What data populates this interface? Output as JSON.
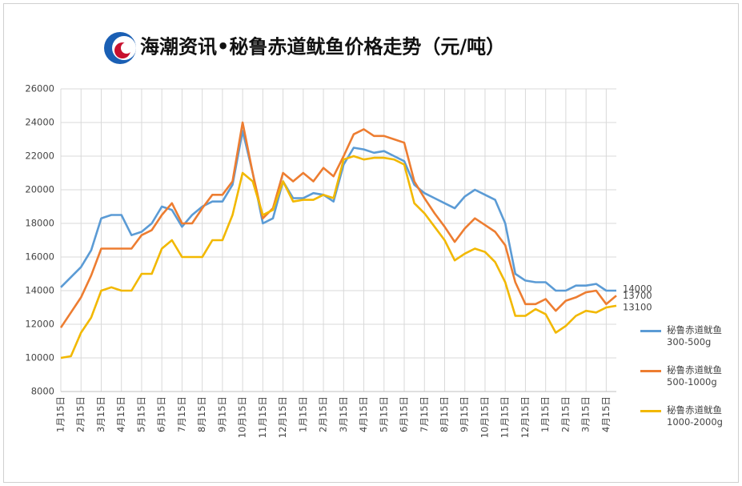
{
  "chart_data": {
    "type": "line",
    "title": "海潮资讯•秘鲁赤道鱿鱼价格走势（元/吨）",
    "categories": [
      "1月15日",
      null,
      "2月15日",
      null,
      "3月15日",
      null,
      "4月15日",
      null,
      "5月15日",
      null,
      "6月15日",
      null,
      "7月15日",
      null,
      "8月15日",
      null,
      "9月15日",
      null,
      "10月15日",
      null,
      "11月15日",
      null,
      "12月15日",
      null,
      "1月15日",
      null,
      "2月15日",
      null,
      "3月15日",
      null,
      "4月15日",
      null,
      "5月15日",
      null,
      "6月15日",
      null,
      "7月15日",
      null,
      "8月15日",
      null,
      "9月15日",
      null,
      "10月15日",
      null,
      "11月15日",
      null,
      "12月15日",
      null,
      "1月15日",
      null,
      "2月15日",
      null,
      "3月15日",
      null,
      "4月15日",
      null
    ],
    "series": [
      {
        "name": "秘鲁赤道鱿鱼\n300-500g",
        "color": "#5b9bd5",
        "values": [
          14200,
          14800,
          15400,
          16400,
          18300,
          18500,
          18500,
          17300,
          17500,
          18000,
          19000,
          18800,
          17800,
          18500,
          19000,
          19300,
          19300,
          20300,
          23500,
          21000,
          18000,
          18300,
          20500,
          19500,
          19500,
          19800,
          19700,
          19300,
          21500,
          22500,
          22400,
          22200,
          22300,
          22000,
          21700,
          20300,
          19800,
          19500,
          19200,
          18900,
          19600,
          20000,
          19700,
          19400,
          18000,
          15000,
          14600,
          14500,
          14500,
          14000,
          14000,
          14300,
          14300,
          14400,
          14000,
          14000
        ]
      },
      {
        "name": "秘鲁赤道鱿鱼\n500-1000g",
        "color": "#ed7d31",
        "values": [
          11800,
          12700,
          13600,
          14900,
          16500,
          16500,
          16500,
          16500,
          17300,
          17600,
          18500,
          19200,
          18000,
          18000,
          18900,
          19700,
          19700,
          20500,
          24000,
          21000,
          18300,
          18900,
          21000,
          20500,
          21000,
          20500,
          21300,
          20800,
          22000,
          23300,
          23600,
          23200,
          23200,
          23000,
          22800,
          20500,
          19500,
          18600,
          17800,
          16900,
          17700,
          18300,
          17900,
          17500,
          16700,
          14500,
          13200,
          13200,
          13500,
          12800,
          13400,
          13600,
          13900,
          14000,
          13200,
          13700
        ]
      },
      {
        "name": "秘鲁赤道鱿鱼\n1000-2000g",
        "color": "#f2b800",
        "values": [
          10000,
          10100,
          11500,
          12400,
          14000,
          14200,
          14000,
          14000,
          15000,
          15000,
          16500,
          17000,
          16000,
          16000,
          16000,
          17000,
          17000,
          18500,
          21000,
          20500,
          18500,
          18800,
          20500,
          19300,
          19400,
          19400,
          19700,
          19500,
          21800,
          22000,
          21800,
          21900,
          21900,
          21800,
          21500,
          19200,
          18600,
          17800,
          17000,
          15800,
          16200,
          16500,
          16300,
          15700,
          14500,
          12500,
          12500,
          12900,
          12600,
          11500,
          11900,
          12500,
          12800,
          12700,
          13000,
          13100
        ]
      }
    ],
    "ylim": [
      8000,
      26000
    ],
    "yticks": [
      8000,
      10000,
      12000,
      14000,
      16000,
      18000,
      20000,
      22000,
      24000,
      26000
    ],
    "grid": true
  }
}
